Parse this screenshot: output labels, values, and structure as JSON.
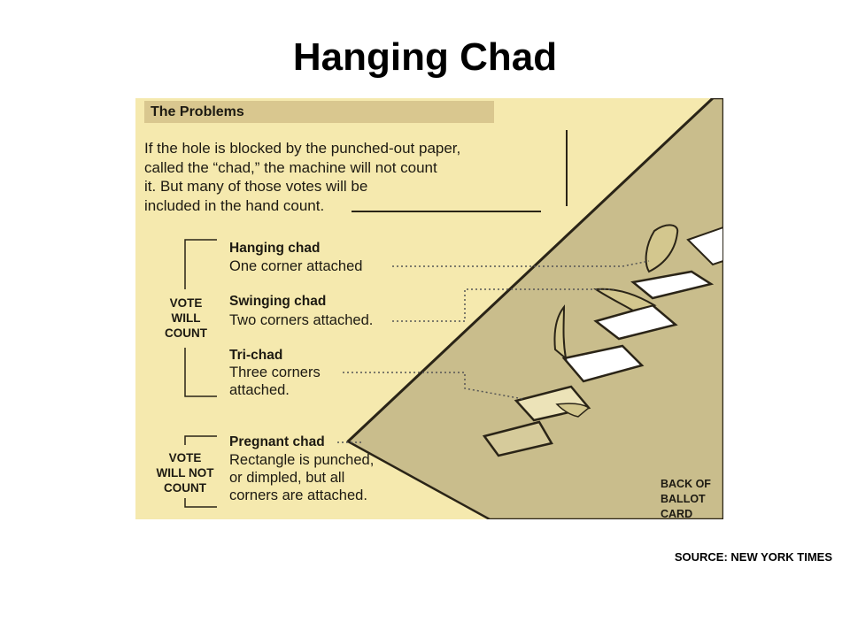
{
  "title": "Hanging Chad",
  "source": "SOURCE: NEW YORK TIMES",
  "panel": {
    "header": "The Problems",
    "intro": "If the hole is blocked by the punched-out paper,\ncalled the “chad,” the machine will not count\nit. But many of those votes will be\nincluded in the hand count.",
    "vote_will_count": "VOTE\nWILL\nCOUNT",
    "vote_will_not_count": "VOTE\nWILL NOT\nCOUNT",
    "items": [
      {
        "name": "Hanging chad",
        "desc": "One corner attached"
      },
      {
        "name": "Swinging chad",
        "desc": "Two corners attached."
      },
      {
        "name": "Tri-chad",
        "desc": "Three corners\nattached."
      },
      {
        "name": "Pregnant chad",
        "desc": "Rectangle is punched,\nor dimpled, but all\ncorners are attached."
      }
    ],
    "card_label": "BACK OF\nBALLOT CARD"
  },
  "colors": {
    "background": "#f5e9ae",
    "card": "#c9bd8c",
    "header_bar": "#d9c78f",
    "hole": "#ffffff"
  }
}
